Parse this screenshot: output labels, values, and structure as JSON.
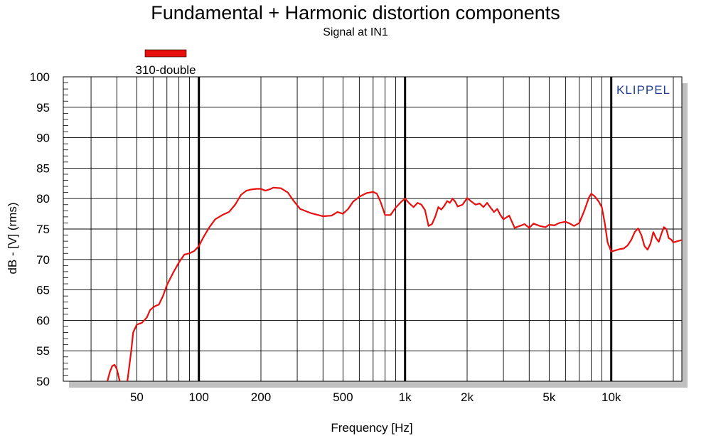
{
  "chart_data": {
    "type": "line",
    "title": "Fundamental + Harmonic distortion components",
    "subtitle": "Signal at IN1",
    "xlabel": "Frequency [Hz]",
    "ylabel": "dB - [V]  (rms)",
    "x_scale": "log",
    "xlim": [
      22,
      22000
    ],
    "ylim": [
      50,
      100
    ],
    "x_ticks": [
      {
        "value": 50,
        "label": "50"
      },
      {
        "value": 100,
        "label": "100"
      },
      {
        "value": 200,
        "label": "200"
      },
      {
        "value": 500,
        "label": "500"
      },
      {
        "value": 1000,
        "label": "1k"
      },
      {
        "value": 2000,
        "label": "2k"
      },
      {
        "value": 5000,
        "label": "5k"
      },
      {
        "value": 10000,
        "label": "10k"
      }
    ],
    "y_ticks": [
      {
        "value": 100,
        "label": "100"
      },
      {
        "value": 95,
        "label": "95"
      },
      {
        "value": 90,
        "label": "90"
      },
      {
        "value": 85,
        "label": "85"
      },
      {
        "value": 80,
        "label": "80"
      },
      {
        "value": 75,
        "label": "75"
      },
      {
        "value": 70,
        "label": "70"
      },
      {
        "value": 65,
        "label": "65"
      },
      {
        "value": 60,
        "label": "60"
      },
      {
        "value": 55,
        "label": "55"
      },
      {
        "value": 50,
        "label": "50"
      }
    ],
    "major_decades": [
      100,
      1000,
      10000
    ],
    "grid": true,
    "legend_position": "top-left",
    "brand_text": "KLIPPEL",
    "series": [
      {
        "name": "310-double",
        "color": "#e8100e",
        "points": [
          [
            36,
            50.0
          ],
          [
            37,
            51.5
          ],
          [
            38,
            52.5
          ],
          [
            39,
            52.7
          ],
          [
            40,
            52.0
          ],
          [
            41,
            50.5
          ],
          [
            42,
            49.0
          ],
          [
            44,
            48.0
          ],
          [
            45,
            50.0
          ],
          [
            47,
            55.0
          ],
          [
            48,
            58.0
          ],
          [
            50,
            59.3
          ],
          [
            53,
            59.6
          ],
          [
            56,
            60.5
          ],
          [
            58,
            61.7
          ],
          [
            61,
            62.3
          ],
          [
            64,
            62.6
          ],
          [
            67,
            64.0
          ],
          [
            70,
            65.8
          ],
          [
            75,
            67.8
          ],
          [
            80,
            69.5
          ],
          [
            85,
            70.8
          ],
          [
            90,
            71.0
          ],
          [
            95,
            71.4
          ],
          [
            100,
            72.2
          ],
          [
            105,
            73.6
          ],
          [
            112,
            75.2
          ],
          [
            120,
            76.6
          ],
          [
            130,
            77.3
          ],
          [
            140,
            77.8
          ],
          [
            150,
            79.0
          ],
          [
            160,
            80.6
          ],
          [
            170,
            81.3
          ],
          [
            180,
            81.5
          ],
          [
            190,
            81.6
          ],
          [
            200,
            81.6
          ],
          [
            210,
            81.3
          ],
          [
            220,
            81.5
          ],
          [
            230,
            81.8
          ],
          [
            250,
            81.7
          ],
          [
            270,
            81.0
          ],
          [
            290,
            79.5
          ],
          [
            310,
            78.3
          ],
          [
            350,
            77.6
          ],
          [
            400,
            77.1
          ],
          [
            440,
            77.2
          ],
          [
            470,
            77.8
          ],
          [
            500,
            77.5
          ],
          [
            530,
            78.3
          ],
          [
            560,
            79.5
          ],
          [
            600,
            80.3
          ],
          [
            650,
            80.9
          ],
          [
            700,
            81.1
          ],
          [
            730,
            80.8
          ],
          [
            760,
            79.5
          ],
          [
            800,
            77.3
          ],
          [
            850,
            77.3
          ],
          [
            900,
            78.5
          ],
          [
            960,
            79.5
          ],
          [
            1000,
            80.0
          ],
          [
            1050,
            79.2
          ],
          [
            1100,
            78.6
          ],
          [
            1150,
            79.3
          ],
          [
            1200,
            79.0
          ],
          [
            1250,
            78.1
          ],
          [
            1300,
            75.5
          ],
          [
            1350,
            75.8
          ],
          [
            1400,
            77.0
          ],
          [
            1450,
            78.6
          ],
          [
            1500,
            78.2
          ],
          [
            1550,
            78.8
          ],
          [
            1600,
            79.6
          ],
          [
            1650,
            79.3
          ],
          [
            1700,
            80.0
          ],
          [
            1750,
            79.5
          ],
          [
            1800,
            78.7
          ],
          [
            1900,
            79.0
          ],
          [
            2000,
            80.1
          ],
          [
            2100,
            79.5
          ],
          [
            2200,
            79.0
          ],
          [
            2300,
            79.2
          ],
          [
            2400,
            78.6
          ],
          [
            2500,
            79.3
          ],
          [
            2600,
            78.5
          ],
          [
            2700,
            77.8
          ],
          [
            2800,
            78.3
          ],
          [
            2900,
            77.3
          ],
          [
            3000,
            76.6
          ],
          [
            3200,
            77.2
          ],
          [
            3400,
            75.2
          ],
          [
            3600,
            75.5
          ],
          [
            3800,
            75.8
          ],
          [
            4000,
            75.2
          ],
          [
            4200,
            75.9
          ],
          [
            4500,
            75.5
          ],
          [
            4800,
            75.3
          ],
          [
            5000,
            75.7
          ],
          [
            5300,
            75.6
          ],
          [
            5600,
            76.0
          ],
          [
            6000,
            76.2
          ],
          [
            6300,
            75.9
          ],
          [
            6600,
            75.5
          ],
          [
            7000,
            76.0
          ],
          [
            7400,
            78.0
          ],
          [
            7800,
            80.2
          ],
          [
            8000,
            80.8
          ],
          [
            8300,
            80.4
          ],
          [
            8700,
            79.5
          ],
          [
            9000,
            78.6
          ],
          [
            9300,
            76.0
          ],
          [
            9600,
            72.8
          ],
          [
            10000,
            71.3
          ],
          [
            10500,
            71.5
          ],
          [
            11000,
            71.7
          ],
          [
            11500,
            71.8
          ],
          [
            12000,
            72.3
          ],
          [
            12500,
            73.2
          ],
          [
            13000,
            74.5
          ],
          [
            13500,
            75.1
          ],
          [
            14000,
            74.0
          ],
          [
            14500,
            72.2
          ],
          [
            15000,
            71.6
          ],
          [
            15500,
            72.6
          ],
          [
            16000,
            74.5
          ],
          [
            16500,
            73.5
          ],
          [
            17000,
            72.9
          ],
          [
            17500,
            74.2
          ],
          [
            18000,
            75.3
          ],
          [
            18500,
            75.0
          ],
          [
            19000,
            73.5
          ],
          [
            19500,
            73.3
          ],
          [
            20000,
            72.8
          ],
          [
            21000,
            73.0
          ],
          [
            22000,
            73.2
          ]
        ]
      }
    ]
  }
}
